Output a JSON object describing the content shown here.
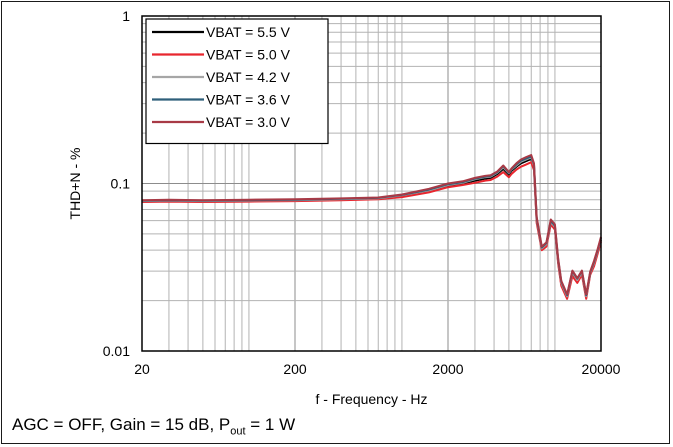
{
  "chart_data": {
    "type": "line",
    "xscale": "log",
    "yscale": "log",
    "xlim": [
      20,
      20000
    ],
    "ylim": [
      0.01,
      1
    ],
    "xticks": [
      20,
      200,
      2000,
      20000
    ],
    "xtick_labels": [
      "20",
      "200",
      "2000",
      "20000"
    ],
    "yticks": [
      0.01,
      0.1,
      1
    ],
    "ytick_labels": [
      "0.01",
      "0.1",
      "1"
    ],
    "xlabel": "f - Frequency - Hz",
    "ylabel": "THD+N - %",
    "grid": true,
    "legend_position": "top-left",
    "series": [
      {
        "name": "VBAT = 5.5 V",
        "color": "#000000",
        "x": [
          20,
          30,
          50,
          100,
          200,
          400,
          700,
          1000,
          1500,
          2000,
          2500,
          3000,
          3500,
          3800,
          4200,
          4600,
          5000,
          5200,
          5600,
          6000,
          6500,
          7000,
          7300,
          7600,
          8200,
          8800,
          9400,
          10000,
          10500,
          11000,
          12000,
          13000,
          14000,
          15000,
          16000,
          17000,
          18000,
          19000,
          20000
        ],
        "y": [
          0.078,
          0.0785,
          0.078,
          0.0785,
          0.079,
          0.08,
          0.081,
          0.084,
          0.09,
          0.097,
          0.1,
          0.104,
          0.107,
          0.108,
          0.114,
          0.122,
          0.113,
          0.119,
          0.126,
          0.132,
          0.136,
          0.14,
          0.125,
          0.06,
          0.041,
          0.043,
          0.058,
          0.054,
          0.034,
          0.025,
          0.021,
          0.029,
          0.026,
          0.029,
          0.021,
          0.029,
          0.033,
          0.039,
          0.046
        ]
      },
      {
        "name": "VBAT = 5.0 V",
        "color": "#e8262e",
        "x": [
          20,
          30,
          50,
          100,
          200,
          400,
          700,
          1000,
          1500,
          2000,
          2500,
          3000,
          3500,
          3800,
          4200,
          4600,
          5000,
          5200,
          5600,
          6000,
          6500,
          7000,
          7300,
          7600,
          8200,
          8800,
          9400,
          10000,
          10500,
          11000,
          12000,
          13000,
          14000,
          15000,
          16000,
          17000,
          18000,
          19000,
          20000
        ],
        "y": [
          0.0775,
          0.078,
          0.0775,
          0.078,
          0.0785,
          0.0795,
          0.0805,
          0.083,
          0.0885,
          0.095,
          0.098,
          0.101,
          0.104,
          0.105,
          0.11,
          0.117,
          0.109,
          0.114,
          0.121,
          0.126,
          0.13,
          0.134,
          0.12,
          0.058,
          0.04,
          0.042,
          0.057,
          0.053,
          0.033,
          0.0245,
          0.0205,
          0.028,
          0.0255,
          0.0285,
          0.0205,
          0.0285,
          0.032,
          0.038,
          0.045
        ]
      },
      {
        "name": "VBAT = 4.2 V",
        "color": "#a6a6a6",
        "x": [
          20,
          30,
          50,
          100,
          200,
          400,
          700,
          1000,
          1500,
          2000,
          2500,
          3000,
          3500,
          3800,
          4200,
          4600,
          5000,
          5200,
          5600,
          6000,
          6500,
          7000,
          7300,
          7600,
          8200,
          8800,
          9400,
          10000,
          10500,
          11000,
          12000,
          13000,
          14000,
          15000,
          16000,
          17000,
          18000,
          19000,
          20000
        ],
        "y": [
          0.0785,
          0.079,
          0.0785,
          0.079,
          0.0795,
          0.0805,
          0.0815,
          0.085,
          0.091,
          0.098,
          0.101,
          0.106,
          0.109,
          0.11,
          0.116,
          0.125,
          0.115,
          0.121,
          0.128,
          0.135,
          0.139,
          0.143,
          0.128,
          0.061,
          0.041,
          0.0435,
          0.059,
          0.055,
          0.0345,
          0.0255,
          0.0212,
          0.0295,
          0.0265,
          0.0295,
          0.0212,
          0.0292,
          0.0335,
          0.0395,
          0.047
        ]
      },
      {
        "name": "VBAT = 3.6 V",
        "color": "#2f5f7a",
        "x": [
          20,
          30,
          50,
          100,
          200,
          400,
          700,
          1000,
          1500,
          2000,
          2500,
          3000,
          3500,
          3800,
          4200,
          4600,
          5000,
          5200,
          5600,
          6000,
          6500,
          7000,
          7300,
          7600,
          8200,
          8800,
          9400,
          10000,
          10500,
          11000,
          12000,
          13000,
          14000,
          15000,
          16000,
          17000,
          18000,
          19000,
          20000
        ],
        "y": [
          0.079,
          0.0795,
          0.079,
          0.0795,
          0.08,
          0.081,
          0.082,
          0.0855,
          0.092,
          0.099,
          0.102,
          0.107,
          0.11,
          0.111,
          0.117,
          0.127,
          0.116,
          0.122,
          0.13,
          0.137,
          0.141,
          0.145,
          0.13,
          0.062,
          0.0415,
          0.044,
          0.06,
          0.056,
          0.035,
          0.026,
          0.0215,
          0.03,
          0.027,
          0.03,
          0.0215,
          0.0295,
          0.034,
          0.04,
          0.0475
        ]
      },
      {
        "name": "VBAT = 3.0 V",
        "color": "#a83a46",
        "x": [
          20,
          30,
          50,
          100,
          200,
          400,
          700,
          1000,
          1500,
          2000,
          2500,
          3000,
          3500,
          3800,
          4200,
          4600,
          5000,
          5200,
          5600,
          6000,
          6500,
          7000,
          7300,
          7600,
          8200,
          8800,
          9400,
          10000,
          10500,
          11000,
          12000,
          13000,
          14000,
          15000,
          16000,
          17000,
          18000,
          19000,
          20000
        ],
        "y": [
          0.0795,
          0.08,
          0.0795,
          0.08,
          0.0805,
          0.0815,
          0.0825,
          0.086,
          0.093,
          0.1,
          0.103,
          0.108,
          0.111,
          0.112,
          0.118,
          0.128,
          0.117,
          0.123,
          0.132,
          0.139,
          0.144,
          0.148,
          0.132,
          0.063,
          0.042,
          0.0445,
          0.061,
          0.057,
          0.0355,
          0.0262,
          0.0218,
          0.0302,
          0.0272,
          0.0302,
          0.0218,
          0.0298,
          0.0345,
          0.0405,
          0.048
        ]
      }
    ]
  },
  "caption": {
    "prefix": "AGC = OFF, Gain = 15 dB, P",
    "sub": "out",
    "suffix": " = 1 W"
  }
}
